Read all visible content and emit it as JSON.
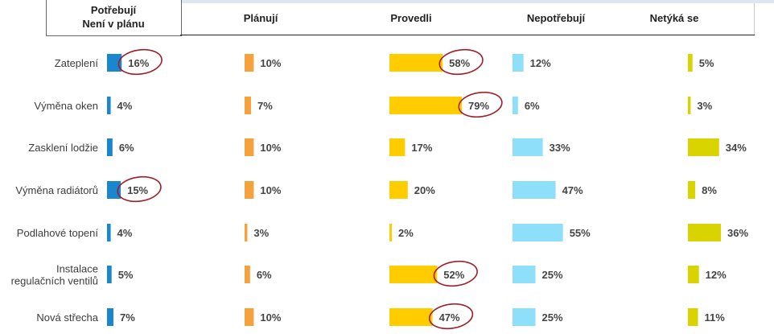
{
  "chart_data": {
    "type": "bar",
    "columns": [
      {
        "label_lines": [
          "Potřebují",
          "Není v plánu"
        ],
        "color": "#1a86d0"
      },
      {
        "label_lines": [
          "Plánují"
        ],
        "color": "#f6a23c"
      },
      {
        "label_lines": [
          "Provedli"
        ],
        "color": "#ffcc00"
      },
      {
        "label_lines": [
          "Nepotřebují"
        ],
        "color": "#8ee0fa"
      },
      {
        "label_lines": [
          "Netýká se"
        ],
        "color": "#d9d400"
      }
    ],
    "categories": [
      [
        "Zateplení"
      ],
      [
        "Výměna oken"
      ],
      [
        "Zasklení lodžie"
      ],
      [
        "Výměna radiátorů"
      ],
      [
        "Podlahové topení"
      ],
      [
        "Instalace",
        "regulačních ventilů"
      ],
      [
        "Nová střecha"
      ]
    ],
    "series": [
      {
        "values": [
          16,
          4,
          6,
          15,
          4,
          5,
          7
        ]
      },
      {
        "values": [
          10,
          7,
          10,
          10,
          3,
          6,
          10
        ]
      },
      {
        "values": [
          58,
          79,
          17,
          20,
          2,
          52,
          47
        ]
      },
      {
        "values": [
          12,
          6,
          33,
          47,
          55,
          25,
          25
        ]
      },
      {
        "values": [
          5,
          3,
          34,
          8,
          36,
          12,
          11
        ]
      }
    ],
    "value_suffix": "%",
    "highlighted": [
      [
        0,
        0
      ],
      [
        0,
        3
      ],
      [
        2,
        0
      ],
      [
        2,
        1
      ],
      [
        2,
        5
      ],
      [
        2,
        6
      ]
    ],
    "highlight_color": "#a01e28"
  }
}
